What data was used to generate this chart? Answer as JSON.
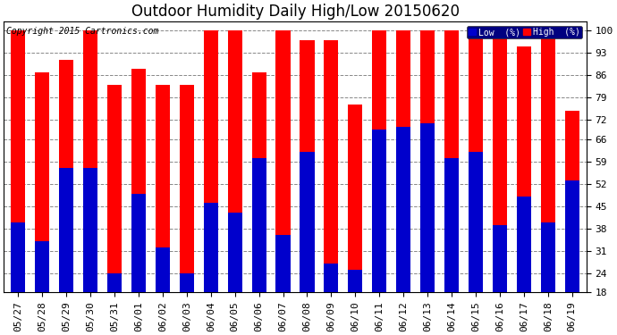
{
  "title": "Outdoor Humidity Daily High/Low 20150620",
  "copyright": "Copyright 2015 Cartronics.com",
  "categories": [
    "05/27",
    "05/28",
    "05/29",
    "05/30",
    "05/31",
    "06/01",
    "06/02",
    "06/03",
    "06/04",
    "06/05",
    "06/06",
    "06/07",
    "06/08",
    "06/09",
    "06/10",
    "06/11",
    "06/12",
    "06/13",
    "06/14",
    "06/15",
    "06/16",
    "06/17",
    "06/18",
    "06/19"
  ],
  "high_values": [
    100,
    87,
    91,
    100,
    83,
    88,
    83,
    83,
    100,
    100,
    87,
    100,
    97,
    97,
    77,
    100,
    100,
    100,
    100,
    100,
    100,
    95,
    100,
    75
  ],
  "low_values": [
    40,
    34,
    57,
    57,
    24,
    49,
    32,
    24,
    46,
    43,
    60,
    36,
    62,
    27,
    25,
    69,
    70,
    71,
    60,
    62,
    39,
    48,
    40,
    53
  ],
  "high_color": "#ff0000",
  "low_color": "#0000cc",
  "bg_color": "#ffffff",
  "plot_bg_color": "#ffffff",
  "grid_color": "#888888",
  "ymin": 18,
  "ymax": 103,
  "yticks": [
    18,
    24,
    31,
    38,
    45,
    52,
    59,
    66,
    72,
    79,
    86,
    93,
    100
  ],
  "bar_width": 0.6,
  "legend_low_label": "Low  (%)",
  "legend_high_label": "High  (%)",
  "title_fontsize": 12,
  "tick_fontsize": 8,
  "copyright_fontsize": 7
}
